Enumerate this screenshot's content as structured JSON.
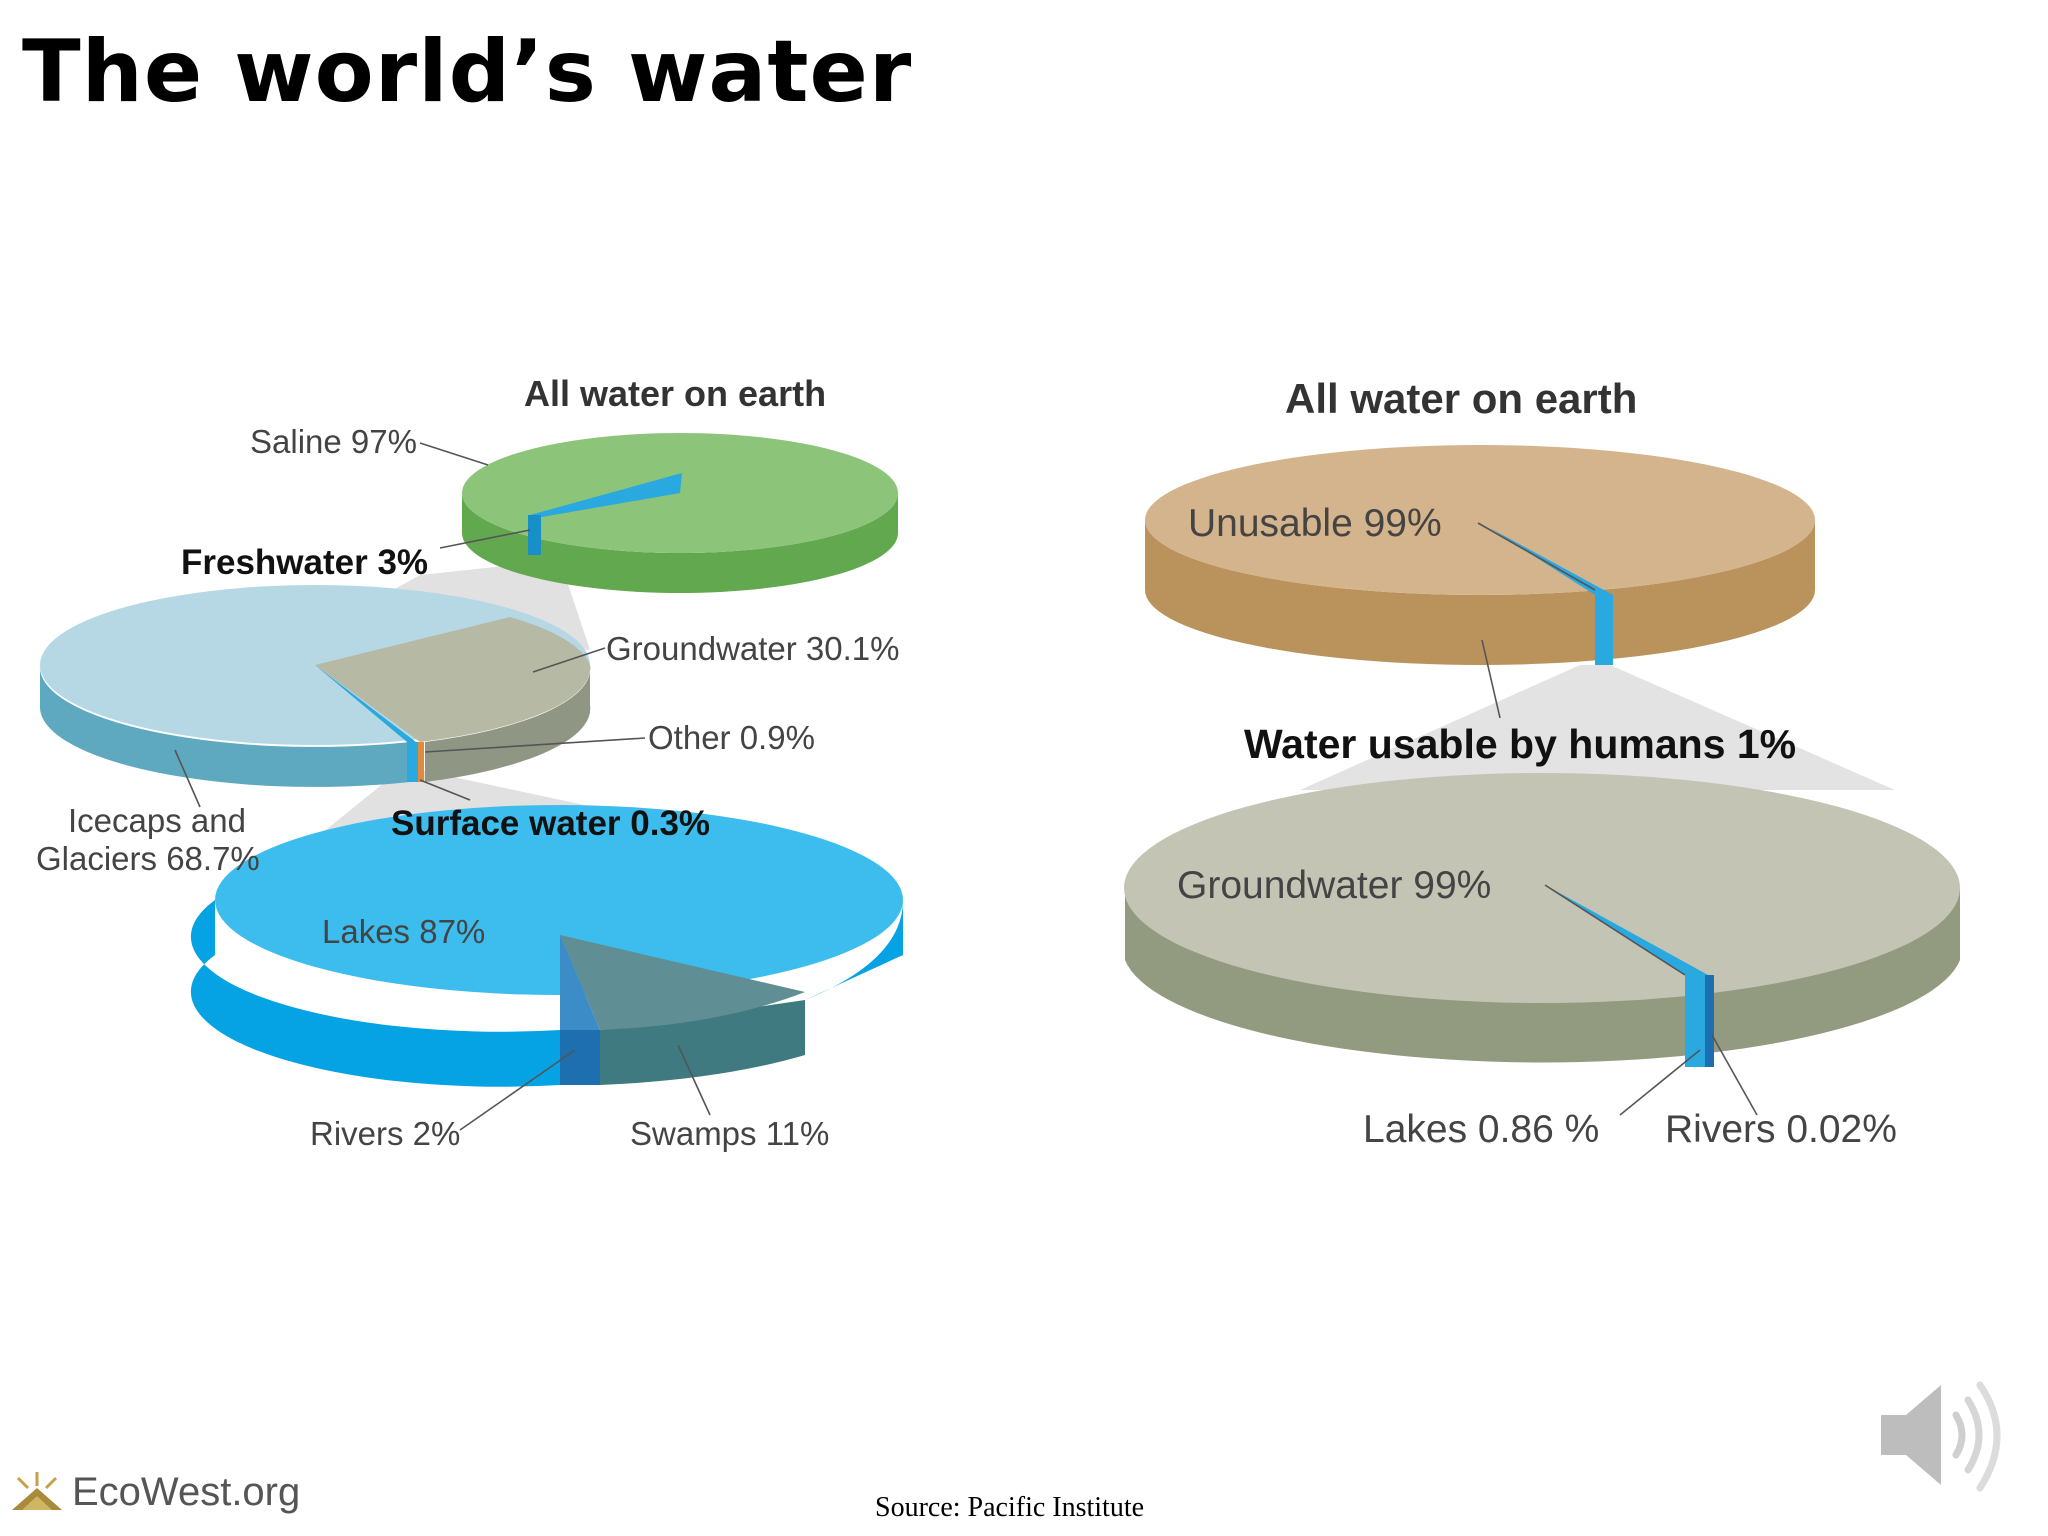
{
  "title": "The world’s water",
  "source": "Source: Pacific Institute",
  "logo_text": "EcoWest.org",
  "colors": {
    "saline": "#8cc47a",
    "saline_side": "#62a84e",
    "icecaps": "#b6d8e4",
    "icecaps_side": "#5ea8c0",
    "groundwater_left": "#b6b9a4",
    "groundwater_left_side": "#8f9684",
    "lakes": "#3dbdee",
    "lakes_side": "#06a3e4",
    "swamps": "#5f8f94",
    "swamps_side": "#3f7a80",
    "rivers_left": "#3c8cc8",
    "rivers_left_side": "#1e6fb0",
    "unusable": "#d4b48c",
    "unusable_side": "#b9925c",
    "groundwater_right": "#c4c4b4",
    "groundwater_right_side": "#929a80",
    "freshwater_slice": "#2aa8e0"
  },
  "chart_data": [
    {
      "type": "pie",
      "style": "3d-stacked",
      "title": "All water on earth",
      "slices": [
        {
          "label": "Saline",
          "value": 97,
          "text": "Saline 97%"
        },
        {
          "label": "Freshwater",
          "value": 3,
          "text": "Freshwater 3%"
        }
      ]
    },
    {
      "type": "pie",
      "style": "3d-stacked",
      "title": "Freshwater 3%",
      "slices": [
        {
          "label": "Icecaps and Glaciers",
          "value": 68.7,
          "text_line1": "Icecaps and",
          "text_line2": "Glaciers 68.7%"
        },
        {
          "label": "Groundwater",
          "value": 30.1,
          "text": "Groundwater 30.1%"
        },
        {
          "label": "Other",
          "value": 0.9,
          "text": "Other 0.9%"
        },
        {
          "label": "Surface water",
          "value": 0.3,
          "text": "Surface water 0.3%"
        }
      ]
    },
    {
      "type": "pie",
      "style": "3d-stacked",
      "title": "Surface water 0.3%",
      "slices": [
        {
          "label": "Lakes",
          "value": 87,
          "text": "Lakes 87%"
        },
        {
          "label": "Swamps",
          "value": 11,
          "text": "Swamps 11%"
        },
        {
          "label": "Rivers",
          "value": 2,
          "text": "Rivers 2%"
        }
      ]
    },
    {
      "type": "pie",
      "style": "3d-stacked",
      "title": "All water on earth",
      "slices": [
        {
          "label": "Unusable",
          "value": 99,
          "text": "Unusable 99%"
        },
        {
          "label": "Water usable by humans",
          "value": 1,
          "text": "Water usable by humans 1%"
        }
      ]
    },
    {
      "type": "pie",
      "style": "3d-stacked",
      "title": "Water usable by humans 1%",
      "slices": [
        {
          "label": "Groundwater",
          "value": 99,
          "text": "Groundwater 99%"
        },
        {
          "label": "Lakes",
          "value": 0.86,
          "text": "Lakes 0.86 %"
        },
        {
          "label": "Rivers",
          "value": 0.02,
          "text": "Rivers 0.02%"
        }
      ]
    }
  ]
}
